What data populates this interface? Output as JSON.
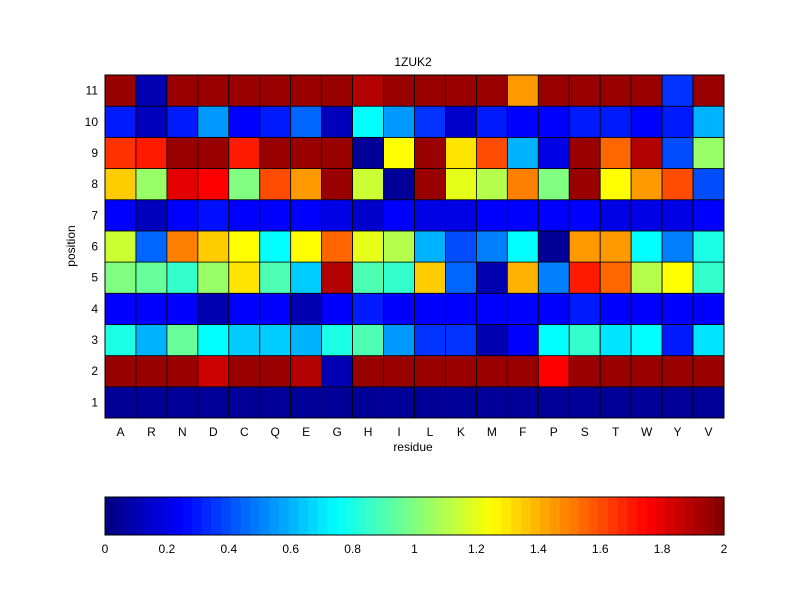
{
  "chart_data": {
    "type": "heatmap",
    "title": "1ZUK2",
    "xlabel": "residue",
    "ylabel": "position",
    "x_categories": [
      "A",
      "R",
      "N",
      "D",
      "C",
      "Q",
      "E",
      "G",
      "H",
      "I",
      "L",
      "K",
      "M",
      "F",
      "P",
      "S",
      "T",
      "W",
      "Y",
      "V"
    ],
    "y_categories": [
      "1",
      "2",
      "3",
      "4",
      "5",
      "6",
      "7",
      "8",
      "9",
      "10",
      "11"
    ],
    "values": [
      [
        0.05,
        0.05,
        0.05,
        0.05,
        0.05,
        0.05,
        0.05,
        0.05,
        0.05,
        0.05,
        0.05,
        0.05,
        0.05,
        0.05,
        0.05,
        0.05,
        0.05,
        0.05,
        0.05,
        0.05
      ],
      [
        1.95,
        1.95,
        1.95,
        1.85,
        1.95,
        1.95,
        1.9,
        0.1,
        1.95,
        1.95,
        1.95,
        1.95,
        1.95,
        1.95,
        1.75,
        1.95,
        1.95,
        1.95,
        1.95,
        1.95
      ],
      [
        0.8,
        0.6,
        0.95,
        0.75,
        0.65,
        0.65,
        0.6,
        0.8,
        0.9,
        0.55,
        0.35,
        0.35,
        0.1,
        0.25,
        0.75,
        0.85,
        0.7,
        0.75,
        0.3,
        0.7
      ],
      [
        0.25,
        0.25,
        0.25,
        0.1,
        0.25,
        0.25,
        0.1,
        0.25,
        0.3,
        0.25,
        0.25,
        0.25,
        0.25,
        0.25,
        0.25,
        0.3,
        0.25,
        0.25,
        0.25,
        0.25
      ],
      [
        1.0,
        0.95,
        0.85,
        1.05,
        1.3,
        0.9,
        0.65,
        1.9,
        0.9,
        0.85,
        1.35,
        0.45,
        0.1,
        1.4,
        0.5,
        1.7,
        1.55,
        1.1,
        1.25,
        0.85
      ],
      [
        1.15,
        0.45,
        1.5,
        1.35,
        1.25,
        0.75,
        1.25,
        1.55,
        1.2,
        1.1,
        0.6,
        0.4,
        0.5,
        0.75,
        0.05,
        1.45,
        1.45,
        0.75,
        0.5,
        0.8
      ],
      [
        0.25,
        0.12,
        0.25,
        0.28,
        0.25,
        0.25,
        0.25,
        0.2,
        0.15,
        0.25,
        0.2,
        0.2,
        0.25,
        0.25,
        0.25,
        0.25,
        0.2,
        0.2,
        0.2,
        0.25
      ],
      [
        1.35,
        1.05,
        1.8,
        1.75,
        1.0,
        1.6,
        1.45,
        1.95,
        1.15,
        0.05,
        1.95,
        1.2,
        1.1,
        1.5,
        1.0,
        1.95,
        1.25,
        1.45,
        1.6,
        0.4
      ],
      [
        1.65,
        1.7,
        1.95,
        1.95,
        1.7,
        1.95,
        1.95,
        1.95,
        0.05,
        1.25,
        1.95,
        1.3,
        1.6,
        0.6,
        0.2,
        1.95,
        1.55,
        1.9,
        0.4,
        1.05
      ],
      [
        0.3,
        0.12,
        0.3,
        0.55,
        0.25,
        0.3,
        0.45,
        0.12,
        0.75,
        0.55,
        0.35,
        0.15,
        0.3,
        0.25,
        0.25,
        0.3,
        0.3,
        0.25,
        0.3,
        0.6
      ],
      [
        1.95,
        0.1,
        1.95,
        1.95,
        1.95,
        1.95,
        1.95,
        1.95,
        1.9,
        1.95,
        1.95,
        1.95,
        1.95,
        1.45,
        1.95,
        1.95,
        1.95,
        1.95,
        0.35,
        1.95
      ]
    ],
    "colorbar": {
      "range": [
        0,
        2
      ],
      "ticks": [
        "0",
        "0.2",
        "0.4",
        "0.6",
        "0.8",
        "1",
        "1.2",
        "1.4",
        "1.6",
        "1.8",
        "2"
      ],
      "colormap": "jet"
    }
  }
}
